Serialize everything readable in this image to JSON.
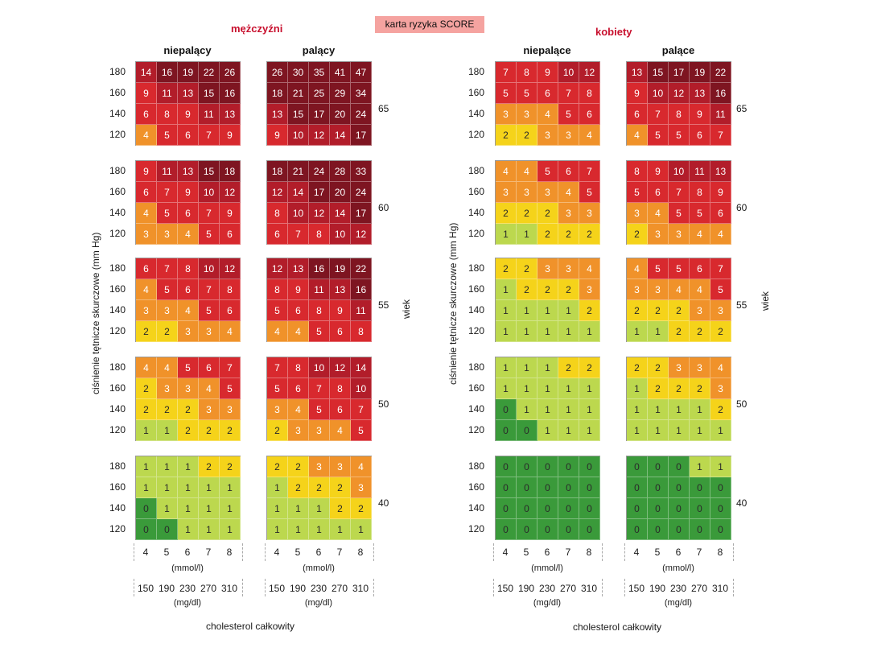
{
  "title": "karta ryzyka SCORE",
  "men": {
    "label": "mężczyźni",
    "non_smoking": "niepalący",
    "smoking": "palący"
  },
  "women": {
    "label": "kobiety",
    "non_smoking": "niepalące",
    "smoking": "palące"
  },
  "y_axis_label": "ciśnienie tętnicze skurczowe (mm Hg)",
  "age_axis_label": "wiek",
  "bp_levels": [
    "180",
    "160",
    "140",
    "120"
  ],
  "ages": [
    "65",
    "60",
    "55",
    "50",
    "40"
  ],
  "chol_mmol": [
    "4",
    "5",
    "6",
    "7",
    "8"
  ],
  "chol_mgdl": [
    "150",
    "190",
    "230",
    "270",
    "310"
  ],
  "unit_mmol": "(mmol/l)",
  "unit_mgdl": "(mg/dl)",
  "footer_label": "cholesterol całkowity",
  "chart_data": {
    "type": "heatmap",
    "title": "karta ryzyka SCORE",
    "ylabel": "ciśnienie tętnicze skurczowe (mm Hg)",
    "xlabel": "cholesterol całkowity",
    "color_scale": [
      {
        "min": 0,
        "max": 0,
        "color": "#3a9a3a"
      },
      {
        "min": 1,
        "max": 1,
        "color": "#bcd84e"
      },
      {
        "min": 2,
        "max": 2,
        "color": "#f5d31a"
      },
      {
        "min": 3,
        "max": 4,
        "color": "#f0922a"
      },
      {
        "min": 5,
        "max": 9,
        "color": "#d8292e"
      },
      {
        "min": 10,
        "max": 14,
        "color": "#b21d2a"
      },
      {
        "min": 15,
        "max": 99,
        "color": "#7e1521"
      }
    ],
    "panels": {
      "men_non_smoking": {
        "65": [
          [
            14,
            16,
            19,
            22,
            26
          ],
          [
            9,
            11,
            13,
            15,
            16
          ],
          [
            6,
            8,
            9,
            11,
            13
          ],
          [
            4,
            5,
            6,
            7,
            9
          ]
        ],
        "60": [
          [
            9,
            11,
            13,
            15,
            18
          ],
          [
            6,
            7,
            9,
            10,
            12
          ],
          [
            4,
            5,
            6,
            7,
            9
          ],
          [
            3,
            3,
            4,
            5,
            6
          ]
        ],
        "55": [
          [
            6,
            7,
            8,
            10,
            12
          ],
          [
            4,
            5,
            6,
            7,
            8
          ],
          [
            3,
            3,
            4,
            5,
            6
          ],
          [
            2,
            2,
            3,
            3,
            4
          ]
        ],
        "50": [
          [
            4,
            4,
            5,
            6,
            7
          ],
          [
            2,
            3,
            3,
            4,
            5
          ],
          [
            2,
            2,
            2,
            3,
            3
          ],
          [
            1,
            1,
            2,
            2,
            2
          ]
        ],
        "40": [
          [
            1,
            1,
            1,
            2,
            2
          ],
          [
            1,
            1,
            1,
            1,
            1
          ],
          [
            0,
            1,
            1,
            1,
            1
          ],
          [
            0,
            0,
            1,
            1,
            1
          ]
        ]
      },
      "men_smoking": {
        "65": [
          [
            26,
            30,
            35,
            41,
            47
          ],
          [
            18,
            21,
            25,
            29,
            34
          ],
          [
            13,
            15,
            17,
            20,
            24
          ],
          [
            9,
            10,
            12,
            14,
            17
          ]
        ],
        "60": [
          [
            18,
            21,
            24,
            28,
            33
          ],
          [
            12,
            14,
            17,
            20,
            24
          ],
          [
            8,
            10,
            12,
            14,
            17
          ],
          [
            6,
            7,
            8,
            10,
            12
          ]
        ],
        "55": [
          [
            12,
            13,
            16,
            19,
            22
          ],
          [
            8,
            9,
            11,
            13,
            16
          ],
          [
            5,
            6,
            8,
            9,
            11
          ],
          [
            4,
            4,
            5,
            6,
            8
          ]
        ],
        "50": [
          [
            7,
            8,
            10,
            12,
            14
          ],
          [
            5,
            6,
            7,
            8,
            10
          ],
          [
            3,
            4,
            5,
            6,
            7
          ],
          [
            2,
            3,
            3,
            4,
            5
          ]
        ],
        "40": [
          [
            2,
            2,
            3,
            3,
            4
          ],
          [
            1,
            2,
            2,
            2,
            3
          ],
          [
            1,
            1,
            1,
            2,
            2
          ],
          [
            1,
            1,
            1,
            1,
            1
          ]
        ]
      },
      "women_non_smoking": {
        "65": [
          [
            7,
            8,
            9,
            10,
            12
          ],
          [
            5,
            5,
            6,
            7,
            8
          ],
          [
            3,
            3,
            4,
            5,
            6
          ],
          [
            2,
            2,
            3,
            3,
            4
          ]
        ],
        "60": [
          [
            4,
            4,
            5,
            6,
            7
          ],
          [
            3,
            3,
            3,
            4,
            5
          ],
          [
            2,
            2,
            2,
            3,
            3
          ],
          [
            1,
            1,
            2,
            2,
            2
          ]
        ],
        "55": [
          [
            2,
            2,
            3,
            3,
            4
          ],
          [
            1,
            2,
            2,
            2,
            3
          ],
          [
            1,
            1,
            1,
            1,
            2
          ],
          [
            1,
            1,
            1,
            1,
            1
          ]
        ],
        "50": [
          [
            1,
            1,
            1,
            2,
            2
          ],
          [
            1,
            1,
            1,
            1,
            1
          ],
          [
            0,
            1,
            1,
            1,
            1
          ],
          [
            0,
            0,
            1,
            1,
            1
          ]
        ],
        "40": [
          [
            0,
            0,
            0,
            0,
            0
          ],
          [
            0,
            0,
            0,
            0,
            0
          ],
          [
            0,
            0,
            0,
            0,
            0
          ],
          [
            0,
            0,
            0,
            0,
            0
          ]
        ]
      },
      "women_smoking": {
        "65": [
          [
            13,
            15,
            17,
            19,
            22
          ],
          [
            9,
            10,
            12,
            13,
            16
          ],
          [
            6,
            7,
            8,
            9,
            11
          ],
          [
            4,
            5,
            5,
            6,
            7
          ]
        ],
        "60": [
          [
            8,
            9,
            10,
            11,
            13
          ],
          [
            5,
            6,
            7,
            8,
            9
          ],
          [
            3,
            4,
            5,
            5,
            6
          ],
          [
            2,
            3,
            3,
            4,
            4
          ]
        ],
        "55": [
          [
            4,
            5,
            5,
            6,
            7
          ],
          [
            3,
            3,
            4,
            4,
            5
          ],
          [
            2,
            2,
            2,
            3,
            3
          ],
          [
            1,
            1,
            2,
            2,
            2
          ]
        ],
        "50": [
          [
            2,
            2,
            3,
            3,
            4
          ],
          [
            1,
            2,
            2,
            2,
            3
          ],
          [
            1,
            1,
            1,
            1,
            2
          ],
          [
            1,
            1,
            1,
            1,
            1
          ]
        ],
        "40": [
          [
            0,
            0,
            0,
            1,
            1
          ],
          [
            0,
            0,
            0,
            0,
            0
          ],
          [
            0,
            0,
            0,
            0,
            0
          ],
          [
            0,
            0,
            0,
            0,
            0
          ]
        ]
      }
    }
  }
}
